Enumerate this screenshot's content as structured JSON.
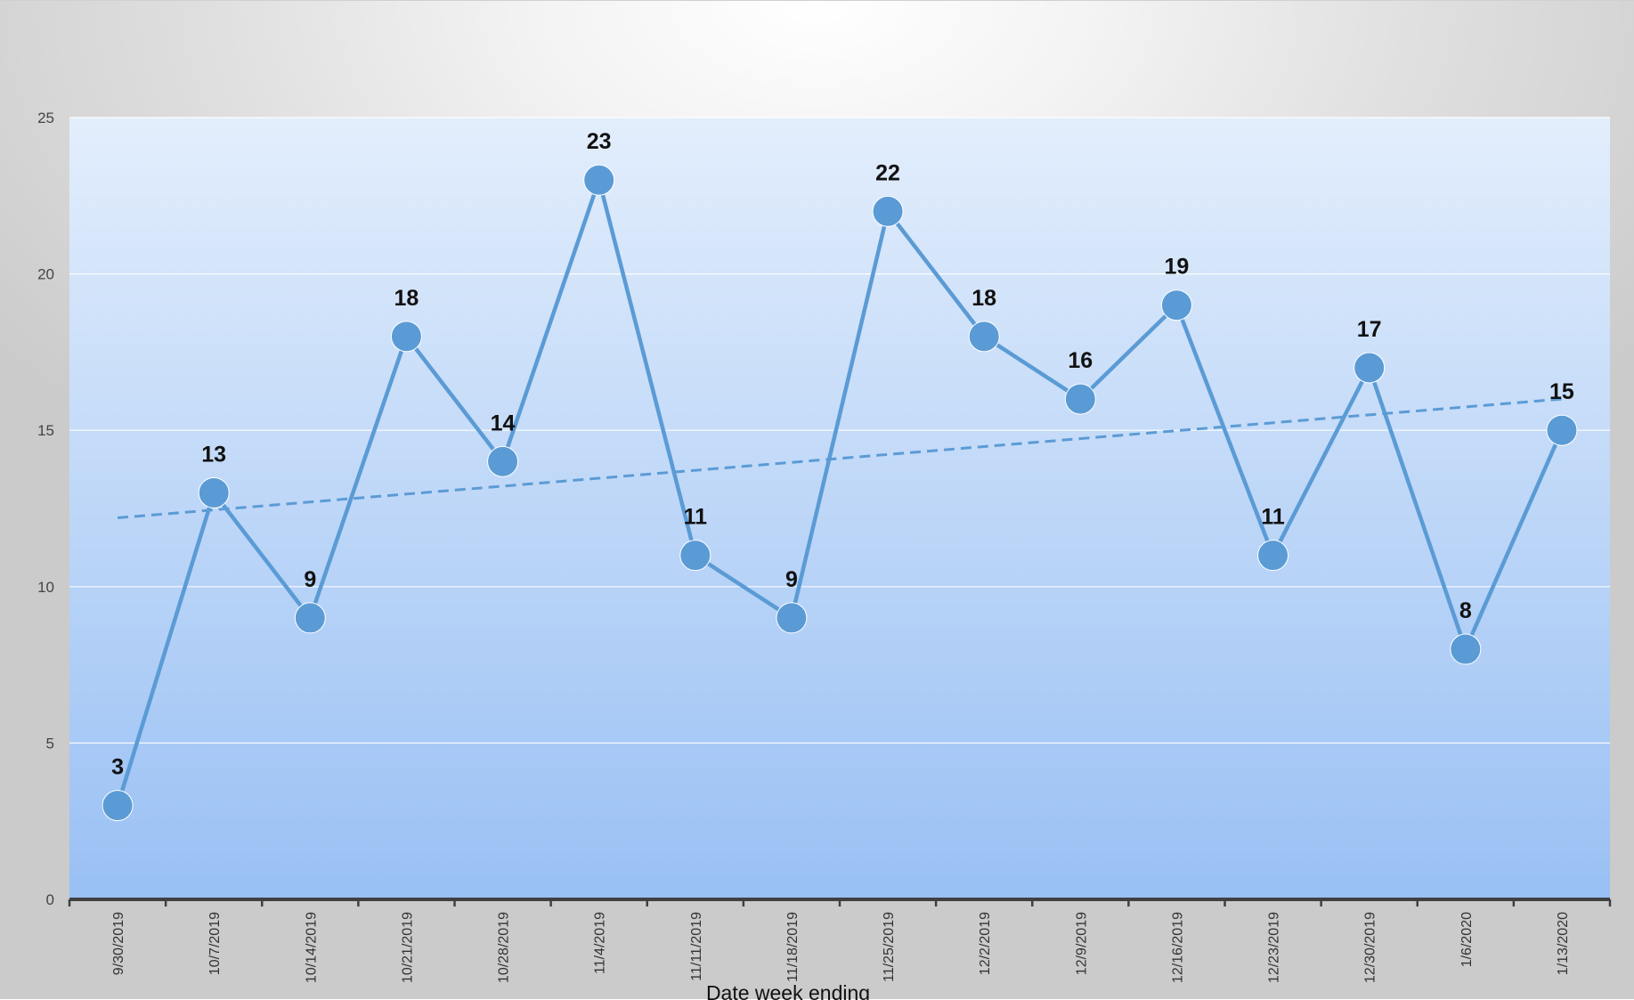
{
  "chart_data": {
    "type": "line",
    "title": "",
    "xlabel": "Date week ending",
    "ylabel": "",
    "categories": [
      "9/30/2019",
      "10/7/2019",
      "10/14/2019",
      "10/21/2019",
      "10/28/2019",
      "11/4/2019",
      "11/11/2019",
      "11/18/2019",
      "11/25/2019",
      "12/2/2019",
      "12/9/2019",
      "12/16/2019",
      "12/23/2019",
      "12/30/2019",
      "1/6/2020",
      "1/13/2020"
    ],
    "series": [
      {
        "values": [
          3,
          13,
          9,
          18,
          14,
          23,
          11,
          9,
          22,
          18,
          16,
          19,
          11,
          17,
          8,
          15
        ],
        "color": "#5b9bd5"
      }
    ],
    "trendline": {
      "type": "linear",
      "style": "dashed",
      "start": 12.2,
      "end": 16.0,
      "color": "#5b9bd5"
    },
    "yticks": [
      0,
      5,
      10,
      15,
      20,
      25
    ],
    "ylim": [
      0,
      25
    ],
    "grid": true,
    "data_labels": true,
    "legend": "none",
    "colors": {
      "plot_top": "#e3eefc",
      "plot_bottom": "#99c0f4",
      "axis": "#404040",
      "gridline": "#ffffff"
    }
  }
}
